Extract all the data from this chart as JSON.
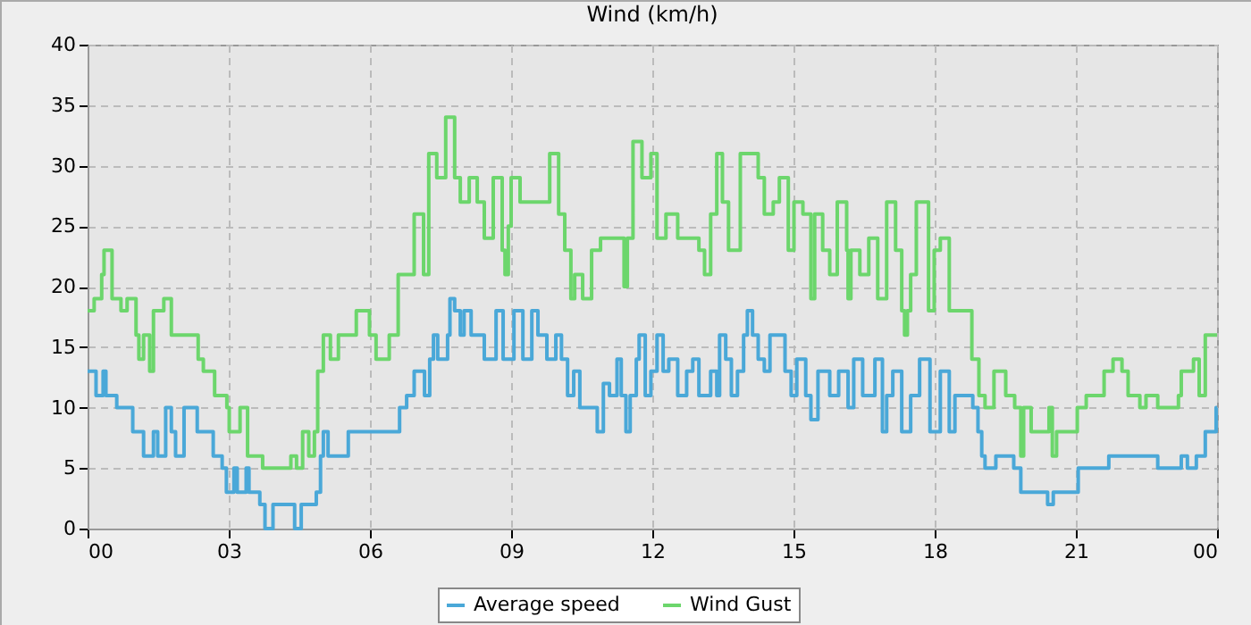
{
  "chart_data": {
    "type": "step",
    "title": "Wind (km/h)",
    "xlim": [
      0,
      24
    ],
    "xticks": [
      {
        "value": 0,
        "label": "00"
      },
      {
        "value": 3,
        "label": "03"
      },
      {
        "value": 6,
        "label": "06"
      },
      {
        "value": 9,
        "label": "09"
      },
      {
        "value": 12,
        "label": "12"
      },
      {
        "value": 15,
        "label": "15"
      },
      {
        "value": 18,
        "label": "18"
      },
      {
        "value": 21,
        "label": "21"
      },
      {
        "value": 24,
        "label": "00"
      }
    ],
    "ylim": [
      0,
      40
    ],
    "yticks": [
      0,
      5,
      10,
      15,
      20,
      25,
      30,
      35,
      40
    ],
    "grid": true,
    "legend": "bottom",
    "series": [
      {
        "name": "Average speed",
        "color": "#4aa8d8",
        "x": [
          0,
          0.11,
          0.18,
          0.33,
          0.39,
          0.62,
          0.96,
          1.19,
          1.4,
          1.49,
          1.66,
          1.78,
          1.87,
          2.05,
          2.33,
          2.67,
          2.86,
          2.95,
          3.11,
          3.18,
          3.37,
          3.43,
          3.66,
          3.77,
          3.94,
          4.4,
          4.54,
          4.86,
          4.95,
          5.01,
          5.11,
          5.54,
          6.63,
          6.78,
          6.94,
          7.16,
          7.27,
          7.35,
          7.44,
          7.65,
          7.7,
          7.8,
          7.92,
          8.0,
          8.15,
          8.43,
          8.68,
          8.83,
          9.06,
          9.25,
          9.44,
          9.57,
          9.76,
          9.95,
          10.07,
          10.2,
          10.33,
          10.46,
          10.83,
          10.96,
          11.09,
          11.25,
          11.34,
          11.44,
          11.53,
          11.66,
          11.72,
          11.85,
          11.97,
          12.1,
          12.23,
          12.35,
          12.54,
          12.73,
          12.86,
          12.99,
          13.24,
          13.37,
          13.43,
          13.56,
          13.68,
          13.81,
          13.94,
          14.02,
          14.13,
          14.25,
          14.38,
          14.5,
          14.82,
          14.95,
          15.07,
          15.26,
          15.37,
          15.52,
          15.77,
          15.96,
          16.16,
          16.28,
          16.47,
          16.73,
          16.89,
          16.98,
          17.11,
          17.3,
          17.49,
          17.68,
          17.9,
          18.12,
          18.31,
          18.43,
          18.81,
          18.92,
          19.0,
          19.07,
          19.3,
          19.68,
          19.83,
          20.4,
          20.52,
          21.05,
          21.7,
          22.74,
          23.24,
          23.37,
          23.56,
          23.75,
          23.98,
          24
        ],
        "values": [
          13,
          13,
          11,
          13,
          11,
          10,
          8,
          6,
          8,
          6,
          10,
          8,
          6,
          10,
          8,
          6,
          5,
          3,
          5,
          3,
          5,
          3,
          2,
          0,
          2,
          0,
          2,
          3,
          6,
          8,
          6,
          8,
          10,
          11,
          13,
          11,
          14,
          16,
          14,
          16,
          19,
          18,
          16,
          18,
          16,
          14,
          18,
          14,
          18,
          14,
          18,
          16,
          14,
          16,
          14,
          11,
          13,
          10,
          8,
          12,
          11,
          14,
          11,
          8,
          11,
          14,
          16,
          11,
          13,
          16,
          13,
          14,
          11,
          13,
          14,
          11,
          13,
          11,
          16,
          14,
          11,
          13,
          16,
          18,
          16,
          14,
          13,
          16,
          13,
          11,
          14,
          11,
          9,
          13,
          11,
          13,
          10,
          14,
          11,
          14,
          8,
          11,
          13,
          8,
          11,
          14,
          8,
          13,
          8,
          11,
          10,
          8,
          6,
          5,
          6,
          5,
          3,
          2,
          3,
          5,
          6,
          5,
          6,
          5,
          6,
          8,
          10,
          10
        ]
      },
      {
        "name": "Wind Gust",
        "color": "#6cd66c",
        "x": [
          0,
          0.14,
          0.3,
          0.35,
          0.52,
          0.71,
          0.84,
          1.03,
          1.09,
          1.19,
          1.32,
          1.4,
          1.62,
          1.78,
          2.35,
          2.46,
          2.7,
          2.96,
          3.01,
          3.24,
          3.4,
          3.72,
          4.32,
          4.44,
          4.57,
          4.7,
          4.82,
          4.89,
          5.01,
          5.16,
          5.33,
          5.71,
          5.99,
          6.13,
          6.41,
          6.6,
          6.94,
          7.14,
          7.25,
          7.42,
          7.61,
          7.8,
          7.92,
          8.11,
          8.28,
          8.43,
          8.62,
          8.81,
          8.87,
          8.94,
          9.0,
          9.19,
          9.82,
          10.01,
          10.14,
          10.27,
          10.35,
          10.52,
          10.71,
          10.9,
          11.4,
          11.47,
          11.59,
          11.78,
          11.97,
          12.1,
          12.29,
          12.54,
          12.99,
          13.11,
          13.24,
          13.37,
          13.49,
          13.62,
          13.87,
          14.25,
          14.38,
          14.57,
          14.7,
          14.89,
          15.01,
          15.2,
          15.37,
          15.45,
          15.62,
          15.77,
          15.93,
          16.13,
          16.16,
          16.22,
          16.41,
          16.6,
          16.79,
          16.98,
          17.17,
          17.3,
          17.36,
          17.42,
          17.49,
          17.61,
          17.87,
          17.99,
          18.12,
          18.31,
          18.79,
          18.94,
          19.07,
          19.26,
          19.51,
          19.7,
          19.83,
          19.89,
          20.05,
          20.43,
          20.5,
          20.59,
          21.03,
          21.22,
          21.6,
          21.79,
          21.98,
          22.11,
          22.36,
          22.49,
          22.74,
          23.18,
          23.24,
          23.5,
          23.62,
          23.75,
          24
        ],
        "values": [
          18,
          19,
          21,
          23,
          19,
          18,
          19,
          16,
          14,
          16,
          13,
          18,
          19,
          16,
          14,
          13,
          11,
          10,
          8,
          10,
          6,
          5,
          6,
          5,
          8,
          6,
          8,
          13,
          16,
          14,
          16,
          18,
          16,
          14,
          16,
          21,
          26,
          21,
          31,
          29,
          34,
          29,
          27,
          29,
          27,
          24,
          29,
          23,
          21,
          25,
          29,
          27,
          31,
          26,
          23,
          19,
          21,
          19,
          23,
          24,
          20,
          24,
          32,
          29,
          31,
          24,
          26,
          24,
          23,
          21,
          26,
          31,
          27,
          23,
          31,
          29,
          26,
          27,
          29,
          23,
          27,
          26,
          19,
          26,
          23,
          21,
          27,
          23,
          19,
          23,
          21,
          24,
          19,
          27,
          23,
          18,
          16,
          18,
          21,
          27,
          18,
          23,
          24,
          18,
          14,
          11,
          10,
          13,
          11,
          10,
          6,
          10,
          8,
          10,
          6,
          8,
          10,
          11,
          13,
          14,
          13,
          11,
          10,
          11,
          10,
          11,
          13,
          14,
          11,
          16,
          16
        ]
      }
    ]
  }
}
